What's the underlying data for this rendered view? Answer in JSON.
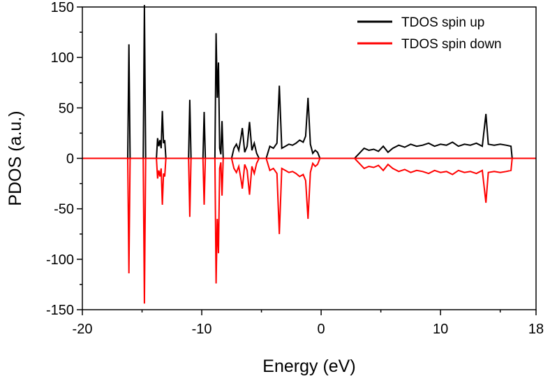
{
  "chart_data": {
    "type": "line",
    "xlabel": "Energy (eV)",
    "ylabel": "PDOS (a.u.)",
    "xlim": [
      -20,
      18
    ],
    "ylim": [
      -150,
      150
    ],
    "x_ticks": [
      -20,
      -10,
      0,
      10,
      18
    ],
    "x_tick_labels": [
      "-20",
      "-10",
      "0",
      "10",
      "18"
    ],
    "y_ticks": [
      150,
      100,
      50,
      0,
      -50,
      -100,
      -150
    ],
    "y_tick_labels": [
      "150",
      "100",
      "50",
      "0",
      "-50",
      "-100",
      "-150"
    ],
    "legend_position": "top-right",
    "zero_line_color": "#ff0000",
    "series": [
      {
        "name": "TDOS spin up",
        "color": "#000000",
        "points": [
          [
            -16.2,
            0
          ],
          [
            -16.1,
            113
          ],
          [
            -16.0,
            0
          ],
          [
            -14.9,
            0
          ],
          [
            -14.8,
            152
          ],
          [
            -14.7,
            0
          ],
          [
            -13.8,
            0
          ],
          [
            -13.7,
            20
          ],
          [
            -13.6,
            12
          ],
          [
            -13.5,
            18
          ],
          [
            -13.4,
            10
          ],
          [
            -13.3,
            47
          ],
          [
            -13.2,
            15
          ],
          [
            -13.1,
            18
          ],
          [
            -13.0,
            0
          ],
          [
            -11.1,
            0
          ],
          [
            -11.0,
            58
          ],
          [
            -10.9,
            0
          ],
          [
            -9.9,
            0
          ],
          [
            -9.8,
            46
          ],
          [
            -9.7,
            0
          ],
          [
            -8.9,
            0
          ],
          [
            -8.8,
            124
          ],
          [
            -8.7,
            60
          ],
          [
            -8.6,
            95
          ],
          [
            -8.5,
            10
          ],
          [
            -8.4,
            4
          ],
          [
            -8.3,
            37
          ],
          [
            -8.2,
            0
          ],
          [
            -7.5,
            0
          ],
          [
            -7.3,
            10
          ],
          [
            -7.1,
            14
          ],
          [
            -6.9,
            8
          ],
          [
            -6.7,
            22
          ],
          [
            -6.6,
            30
          ],
          [
            -6.4,
            6
          ],
          [
            -6.2,
            12
          ],
          [
            -6.0,
            36
          ],
          [
            -5.8,
            8
          ],
          [
            -5.6,
            15
          ],
          [
            -5.4,
            5
          ],
          [
            -5.2,
            0
          ],
          [
            -4.6,
            0
          ],
          [
            -4.3,
            12
          ],
          [
            -4.0,
            10
          ],
          [
            -3.7,
            15
          ],
          [
            -3.5,
            72
          ],
          [
            -3.3,
            10
          ],
          [
            -3.0,
            12
          ],
          [
            -2.7,
            14
          ],
          [
            -2.4,
            13
          ],
          [
            -2.1,
            15
          ],
          [
            -1.8,
            18
          ],
          [
            -1.5,
            16
          ],
          [
            -1.3,
            22
          ],
          [
            -1.1,
            60
          ],
          [
            -0.9,
            14
          ],
          [
            -0.7,
            5
          ],
          [
            -0.5,
            8
          ],
          [
            -0.3,
            6
          ],
          [
            -0.1,
            0
          ],
          [
            2.8,
            0
          ],
          [
            3.2,
            5
          ],
          [
            3.6,
            10
          ],
          [
            4.0,
            8
          ],
          [
            4.4,
            9
          ],
          [
            4.8,
            7
          ],
          [
            5.2,
            12
          ],
          [
            5.6,
            6
          ],
          [
            6.0,
            10
          ],
          [
            6.5,
            13
          ],
          [
            7.0,
            11
          ],
          [
            7.5,
            14
          ],
          [
            8.0,
            12
          ],
          [
            8.5,
            13
          ],
          [
            9.0,
            15
          ],
          [
            9.5,
            12
          ],
          [
            10.0,
            14
          ],
          [
            10.5,
            13
          ],
          [
            11.0,
            16
          ],
          [
            11.5,
            12
          ],
          [
            12.0,
            14
          ],
          [
            12.5,
            13
          ],
          [
            13.0,
            15
          ],
          [
            13.5,
            12
          ],
          [
            13.8,
            44
          ],
          [
            14.0,
            14
          ],
          [
            14.5,
            13
          ],
          [
            15.0,
            14
          ],
          [
            15.5,
            13
          ],
          [
            15.9,
            12
          ],
          [
            16.0,
            0
          ]
        ]
      },
      {
        "name": "TDOS spin down",
        "color": "#ff0000",
        "points": [
          [
            -16.2,
            0
          ],
          [
            -16.1,
            -114
          ],
          [
            -16.0,
            0
          ],
          [
            -14.9,
            0
          ],
          [
            -14.8,
            -144
          ],
          [
            -14.7,
            0
          ],
          [
            -13.8,
            0
          ],
          [
            -13.7,
            -20
          ],
          [
            -13.6,
            -12
          ],
          [
            -13.5,
            -18
          ],
          [
            -13.4,
            -10
          ],
          [
            -13.3,
            -46
          ],
          [
            -13.2,
            -15
          ],
          [
            -13.1,
            -18
          ],
          [
            -13.0,
            0
          ],
          [
            -11.1,
            0
          ],
          [
            -11.0,
            -58
          ],
          [
            -10.9,
            0
          ],
          [
            -9.9,
            0
          ],
          [
            -9.8,
            -46
          ],
          [
            -9.7,
            0
          ],
          [
            -8.9,
            0
          ],
          [
            -8.8,
            -124
          ],
          [
            -8.7,
            -60
          ],
          [
            -8.6,
            -94
          ],
          [
            -8.5,
            -10
          ],
          [
            -8.4,
            -4
          ],
          [
            -8.3,
            -37
          ],
          [
            -8.2,
            0
          ],
          [
            -7.5,
            0
          ],
          [
            -7.3,
            -10
          ],
          [
            -7.1,
            -14
          ],
          [
            -6.9,
            -8
          ],
          [
            -6.7,
            -22
          ],
          [
            -6.6,
            -30
          ],
          [
            -6.4,
            -6
          ],
          [
            -6.2,
            -12
          ],
          [
            -6.0,
            -36
          ],
          [
            -5.8,
            -8
          ],
          [
            -5.6,
            -15
          ],
          [
            -5.4,
            -5
          ],
          [
            -5.2,
            0
          ],
          [
            -4.6,
            0
          ],
          [
            -4.3,
            -12
          ],
          [
            -4.0,
            -10
          ],
          [
            -3.7,
            -15
          ],
          [
            -3.5,
            -75
          ],
          [
            -3.3,
            -10
          ],
          [
            -3.0,
            -12
          ],
          [
            -2.7,
            -14
          ],
          [
            -2.4,
            -13
          ],
          [
            -2.1,
            -15
          ],
          [
            -1.8,
            -18
          ],
          [
            -1.5,
            -16
          ],
          [
            -1.3,
            -22
          ],
          [
            -1.1,
            -60
          ],
          [
            -0.9,
            -14
          ],
          [
            -0.7,
            -5
          ],
          [
            -0.5,
            -8
          ],
          [
            -0.3,
            -6
          ],
          [
            -0.1,
            0
          ],
          [
            2.8,
            0
          ],
          [
            3.2,
            -5
          ],
          [
            3.6,
            -10
          ],
          [
            4.0,
            -8
          ],
          [
            4.4,
            -9
          ],
          [
            4.8,
            -7
          ],
          [
            5.2,
            -12
          ],
          [
            5.6,
            -6
          ],
          [
            6.0,
            -10
          ],
          [
            6.5,
            -13
          ],
          [
            7.0,
            -11
          ],
          [
            7.5,
            -14
          ],
          [
            8.0,
            -12
          ],
          [
            8.5,
            -13
          ],
          [
            9.0,
            -15
          ],
          [
            9.5,
            -12
          ],
          [
            10.0,
            -14
          ],
          [
            10.5,
            -13
          ],
          [
            11.0,
            -16
          ],
          [
            11.5,
            -12
          ],
          [
            12.0,
            -14
          ],
          [
            12.5,
            -13
          ],
          [
            13.0,
            -15
          ],
          [
            13.5,
            -12
          ],
          [
            13.8,
            -44
          ],
          [
            14.0,
            -14
          ],
          [
            14.5,
            -13
          ],
          [
            15.0,
            -14
          ],
          [
            15.5,
            -13
          ],
          [
            15.9,
            -12
          ],
          [
            16.0,
            0
          ]
        ]
      }
    ]
  }
}
